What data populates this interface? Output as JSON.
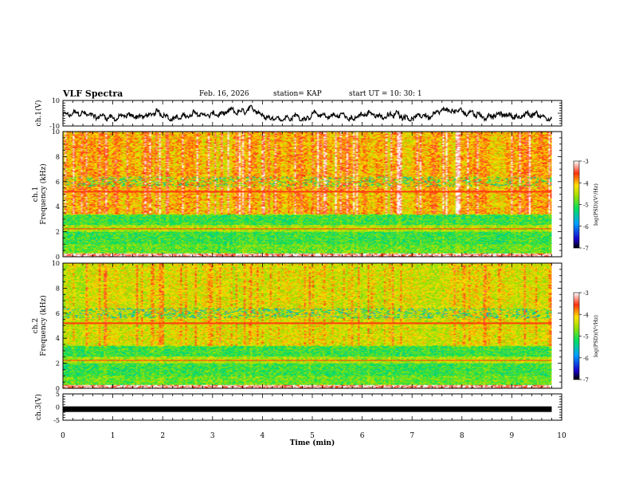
{
  "header": {
    "title": "VLF Spectra",
    "date": "Feb. 16, 2026",
    "station": "station= KAP",
    "start": "start  UT =   10: 30: 1"
  },
  "chart_data": [
    {
      "type": "line",
      "name": "ch1-waveform",
      "ylabel": "ch.1(V)",
      "ylim": [
        -10,
        10
      ],
      "yticks": [
        "10",
        "-10"
      ],
      "xlim": [
        0,
        10
      ],
      "series": [
        {
          "name": "ch.1",
          "approx_range_V": [
            -6,
            6
          ],
          "mean_V": -2
        }
      ]
    },
    {
      "type": "heatmap",
      "name": "ch1-spectrogram",
      "ylabel": "ch.1",
      "ylabel2": "Frequency  (kHz)",
      "ylim": [
        0,
        10
      ],
      "yticks": [
        "0",
        "2",
        "4",
        "6",
        "8",
        "10"
      ],
      "xlim": [
        0,
        10
      ],
      "data_end_min": 9.8,
      "colorbar": {
        "label": "log(PSD)(V²/Hz)",
        "range": [
          -7,
          -3
        ],
        "ticks": [
          "-3",
          "-4",
          "-5",
          "-6",
          "-7"
        ]
      }
    },
    {
      "type": "heatmap",
      "name": "ch2-spectrogram",
      "ylabel": "ch.2",
      "ylabel2": "Frequency  (kHz)",
      "ylim": [
        0,
        10
      ],
      "yticks": [
        "0",
        "2",
        "4",
        "6",
        "8",
        "10"
      ],
      "xlim": [
        0,
        10
      ],
      "data_end_min": 9.8,
      "colorbar": {
        "label": "log(PSD)(V²/Hz)",
        "range": [
          -7,
          -3
        ],
        "ticks": [
          "-3",
          "-4",
          "-5",
          "-6",
          "-7"
        ]
      }
    },
    {
      "type": "line",
      "name": "ch3-signal",
      "ylabel": "ch.3(V)",
      "ylim": [
        -5,
        5
      ],
      "yticks": [
        "5",
        "0",
        "-5"
      ],
      "xlim": [
        0,
        10
      ],
      "series": [
        {
          "name": "ch.3",
          "approx_value_V": -0.8
        }
      ]
    }
  ],
  "xaxis": {
    "label": "Time  (min)",
    "ticks": [
      "0",
      "1",
      "2",
      "3",
      "4",
      "5",
      "6",
      "7",
      "8",
      "9",
      "10"
    ]
  }
}
